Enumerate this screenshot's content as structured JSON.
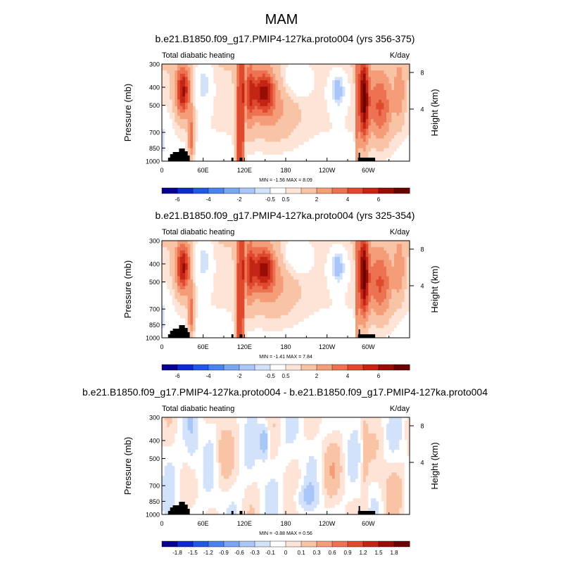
{
  "figure_title": "MAM",
  "chart_data": [
    {
      "type": "heatmap",
      "title": "b.e21.B1850.f09_g17.PMIP4-127ka.proto004 (yrs 356-375)",
      "left_label": "Total diabatic heating",
      "right_label": "K/day",
      "ylabel": "Pressure (mb)",
      "ylabel_right": "Height (km)",
      "x_ticks": [
        "0",
        "60E",
        "120E",
        "180",
        "120W",
        "60W"
      ],
      "y_ticks": [
        "300",
        "400",
        "500",
        "700",
        "850",
        "1000"
      ],
      "y_ticks_right": [
        "8",
        "4"
      ],
      "stats": "MIN =  -1.56  MAX =   8.09",
      "colorbar_ticks": [
        "-6",
        "-4",
        "-2",
        "-0.5",
        "0.5",
        "2",
        "4",
        "6"
      ],
      "mode": "abs"
    },
    {
      "type": "heatmap",
      "title": "b.e21.B1850.f09_g17.PMIP4-127ka.proto004 (yrs 325-354)",
      "left_label": "Total diabatic heating",
      "right_label": "K/day",
      "ylabel": "Pressure (mb)",
      "ylabel_right": "Height (km)",
      "x_ticks": [
        "0",
        "60E",
        "120E",
        "180",
        "120W",
        "60W"
      ],
      "y_ticks": [
        "300",
        "400",
        "500",
        "700",
        "850",
        "1000"
      ],
      "y_ticks_right": [
        "8",
        "4"
      ],
      "stats": "MIN =  -1.41  MAX =   7.84",
      "colorbar_ticks": [
        "-6",
        "-4",
        "-2",
        "-0.5",
        "0.5",
        "2",
        "4",
        "6"
      ],
      "mode": "abs"
    },
    {
      "type": "heatmap",
      "title": "b.e21.B1850.f09_g17.PMIP4-127ka.proto004 - b.e21.B1850.f09_g17.PMIP4-127ka.proto004",
      "left_label": "Total diabatic heating",
      "right_label": "K/day",
      "ylabel": "Pressure (mb)",
      "ylabel_right": "Height (km)",
      "x_ticks": [
        "0",
        "60E",
        "120E",
        "180",
        "120W",
        "60W"
      ],
      "y_ticks": [
        "300",
        "400",
        "500",
        "700",
        "850",
        "1000"
      ],
      "y_ticks_right": [
        "8",
        "4"
      ],
      "stats": "MIN =  -0.88  MAX =   0.56",
      "colorbar_ticks": [
        "-1.8",
        "-1.5",
        "-1.2",
        "-0.9",
        "-0.6",
        "-0.3",
        "-0.1",
        "0",
        "0.1",
        "0.3",
        "0.6",
        "0.9",
        "1.2",
        "1.5",
        "1.8"
      ],
      "mode": "diff"
    }
  ],
  "colors": {
    "palette": [
      "#08008f",
      "#0d2bcf",
      "#2158e6",
      "#4a82ef",
      "#7aa6f4",
      "#a8c6f7",
      "#d2e2fa",
      "#ffffff",
      "#fde4d6",
      "#f9c3a6",
      "#f49d78",
      "#ec7252",
      "#df4a2f",
      "#c42514",
      "#980d06",
      "#6b0000"
    ]
  }
}
